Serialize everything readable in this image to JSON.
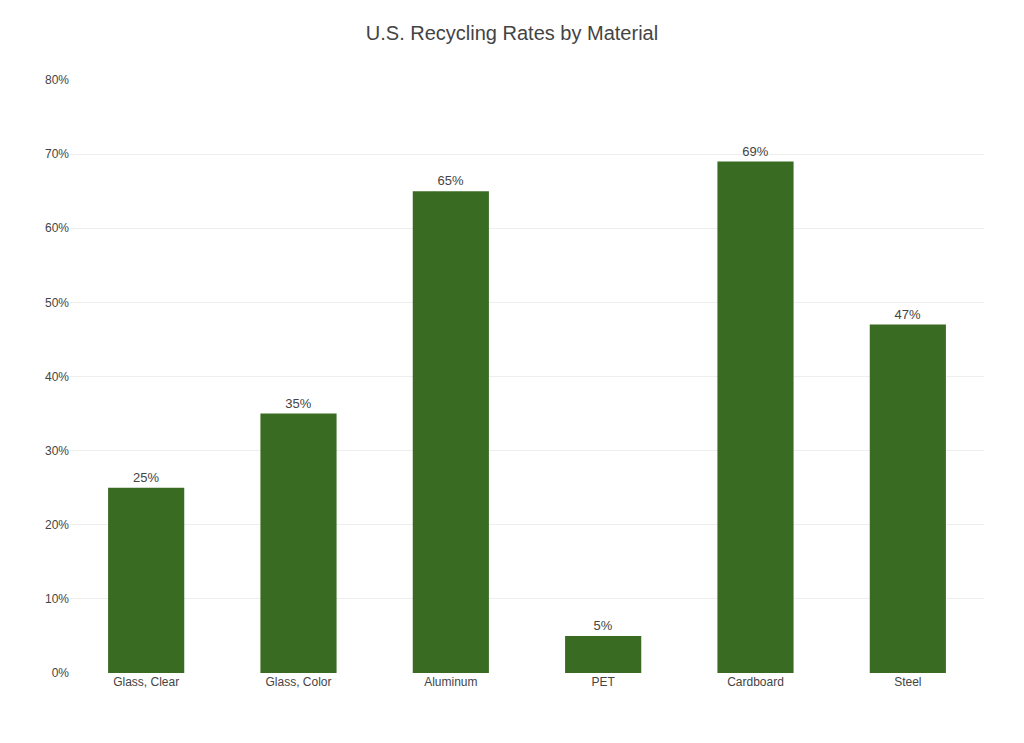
{
  "chart_data": {
    "type": "bar",
    "title": "U.S. Recycling Rates by Material",
    "categories": [
      "Glass, Clear",
      "Glass, Color",
      "Aluminum",
      "PET",
      "Cardboard",
      "Steel"
    ],
    "values": [
      25,
      35,
      65,
      5,
      69,
      47
    ],
    "value_labels": [
      "25%",
      "35%",
      "65%",
      "5%",
      "69%",
      "47%"
    ],
    "data_labels": true,
    "color": "#3a6b22",
    "ylim": [
      0,
      80
    ],
    "yticks": [
      {
        "value": 0,
        "label": "0%"
      },
      {
        "value": 10,
        "label": "10%"
      },
      {
        "value": 20,
        "label": "20%"
      },
      {
        "value": 30,
        "label": "30%"
      },
      {
        "value": 40,
        "label": "40%"
      },
      {
        "value": 50,
        "label": "50%"
      },
      {
        "value": 60,
        "label": "60%"
      },
      {
        "value": 70,
        "label": "70%"
      },
      {
        "value": 80,
        "label": "80%"
      }
    ],
    "grid": true
  }
}
